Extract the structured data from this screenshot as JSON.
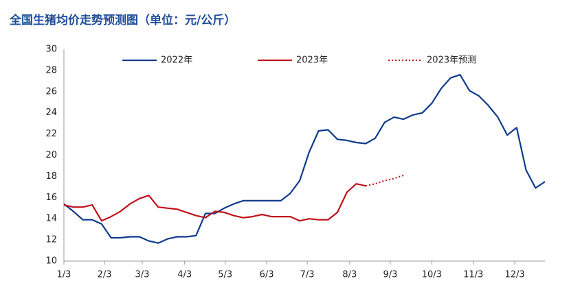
{
  "chart_data": {
    "type": "line",
    "title": "全国生猪均价走势预测图（单位：元/公斤）",
    "x": [
      0,
      1,
      2,
      3,
      4,
      5,
      6,
      7,
      8,
      9,
      10,
      11,
      12,
      13,
      14,
      15,
      16,
      17,
      18,
      19,
      20,
      21,
      22,
      23,
      24,
      25,
      26,
      27,
      28,
      29,
      30,
      31,
      32,
      33,
      34,
      35,
      36,
      37,
      38,
      39,
      40,
      41,
      42,
      43,
      44,
      45,
      46,
      47,
      48,
      49,
      50,
      51
    ],
    "xlim": [
      0,
      51
    ],
    "xticks": [
      {
        "value": 0,
        "label": "1/3"
      },
      {
        "value": 4.3,
        "label": "2/3"
      },
      {
        "value": 8.3,
        "label": "3/3"
      },
      {
        "value": 12.8,
        "label": "4/3"
      },
      {
        "value": 17.1,
        "label": "5/3"
      },
      {
        "value": 21.5,
        "label": "6/3"
      },
      {
        "value": 25.8,
        "label": "7/3"
      },
      {
        "value": 30.3,
        "label": "8/3"
      },
      {
        "value": 34.6,
        "label": "9/3"
      },
      {
        "value": 39,
        "label": "10/3"
      },
      {
        "value": 43.4,
        "label": "11/3"
      },
      {
        "value": 47.8,
        "label": "12/3"
      }
    ],
    "ylim": [
      10,
      30
    ],
    "yticks": [
      10,
      12,
      14,
      16,
      18,
      20,
      22,
      24,
      26,
      28,
      30
    ],
    "grid": false,
    "legend": "top",
    "series": [
      {
        "name": "2022年",
        "color": "#0e3a8c",
        "line_style": "solid",
        "values": [
          15.4,
          14.7,
          13.9,
          13.9,
          13.5,
          12.2,
          12.2,
          12.3,
          12.3,
          11.9,
          11.7,
          12.1,
          12.3,
          12.3,
          12.4,
          14.5,
          14.5,
          15.0,
          15.4,
          15.7,
          15.7,
          15.7,
          15.7,
          15.7,
          16.4,
          17.6,
          20.3,
          22.3,
          22.4,
          21.5,
          21.4,
          21.2,
          21.1,
          21.6,
          23.1,
          23.6,
          23.4,
          23.8,
          24.0,
          24.9,
          26.3,
          27.3,
          27.6,
          26.1,
          25.6,
          24.7,
          23.6,
          21.9,
          22.6,
          18.6,
          16.9,
          17.5
        ]
      },
      {
        "name": "2023年",
        "color": "#c0111b",
        "line_style": "solid",
        "values": [
          15.3,
          15.1,
          15.1,
          15.3,
          13.8,
          14.2,
          14.7,
          15.4,
          15.9,
          16.2,
          15.1,
          15.0,
          14.9,
          14.6,
          14.3,
          14.1,
          14.7,
          14.6,
          14.3,
          14.1,
          14.2,
          14.4,
          14.2,
          14.2,
          14.2,
          13.8,
          14.0,
          13.9,
          13.9,
          14.6,
          16.5,
          17.3,
          17.1,
          null,
          null,
          null,
          null,
          null,
          null,
          null,
          null,
          null,
          null,
          null,
          null,
          null,
          null,
          null,
          null,
          null,
          null,
          null
        ]
      },
      {
        "name": "2023年预测",
        "color": "#c0111b",
        "line_style": "dotted",
        "values": [
          null,
          null,
          null,
          null,
          null,
          null,
          null,
          null,
          null,
          null,
          null,
          null,
          null,
          null,
          null,
          null,
          null,
          null,
          null,
          null,
          null,
          null,
          null,
          null,
          null,
          null,
          null,
          null,
          null,
          null,
          null,
          null,
          17.1,
          17.3,
          17.6,
          17.8,
          18.1,
          null,
          null,
          null,
          null,
          null,
          null,
          null,
          null,
          null,
          null,
          null,
          null,
          null,
          null,
          null
        ]
      }
    ]
  }
}
